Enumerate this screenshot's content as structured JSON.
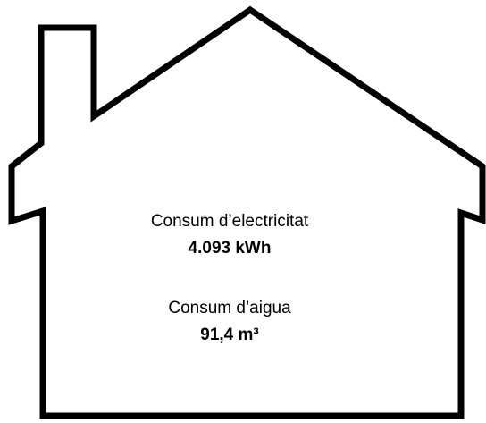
{
  "electricity": {
    "label": "Consum d’electricitat",
    "value": "4.093 kWh"
  },
  "water": {
    "label": "Consum d’aigua",
    "value": "91,4 m³"
  }
}
